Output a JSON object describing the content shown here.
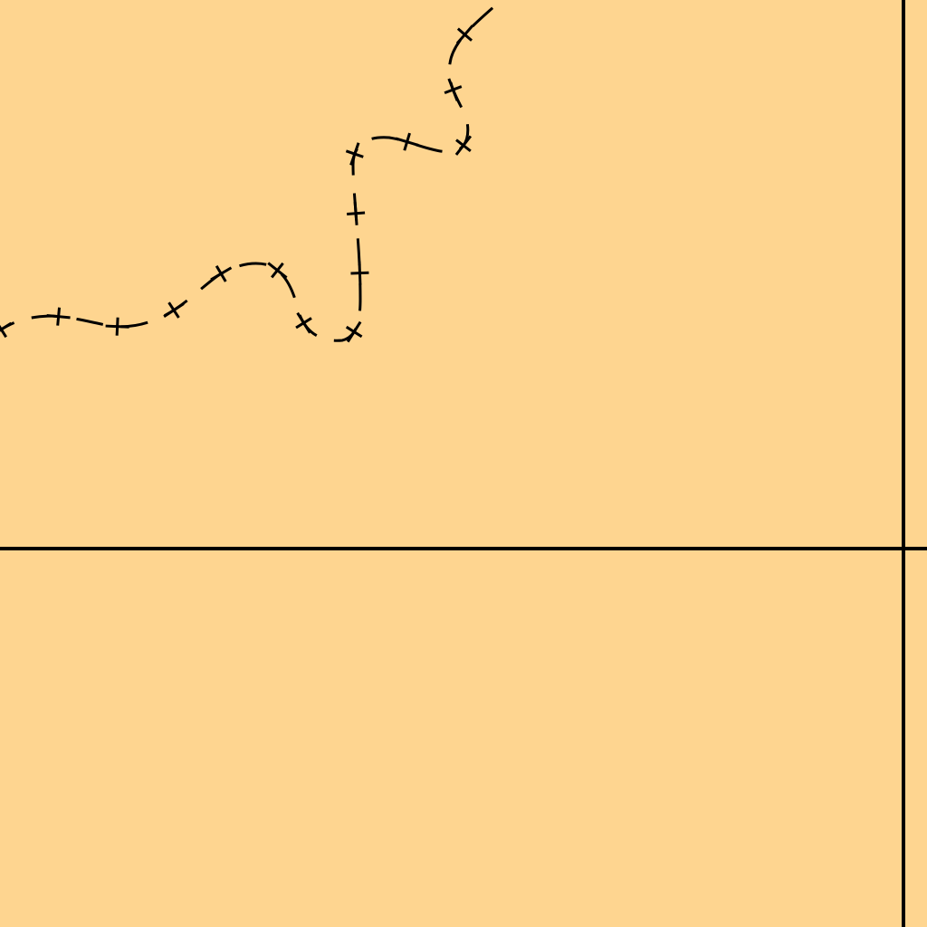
{
  "map": {
    "background_color": "#FED590",
    "line_color": "#000000",
    "features": [
      {
        "kind": "dashed-boundary-with-cross-ticks"
      },
      {
        "kind": "horizontal-grid-line"
      },
      {
        "kind": "vertical-grid-line"
      }
    ]
  }
}
